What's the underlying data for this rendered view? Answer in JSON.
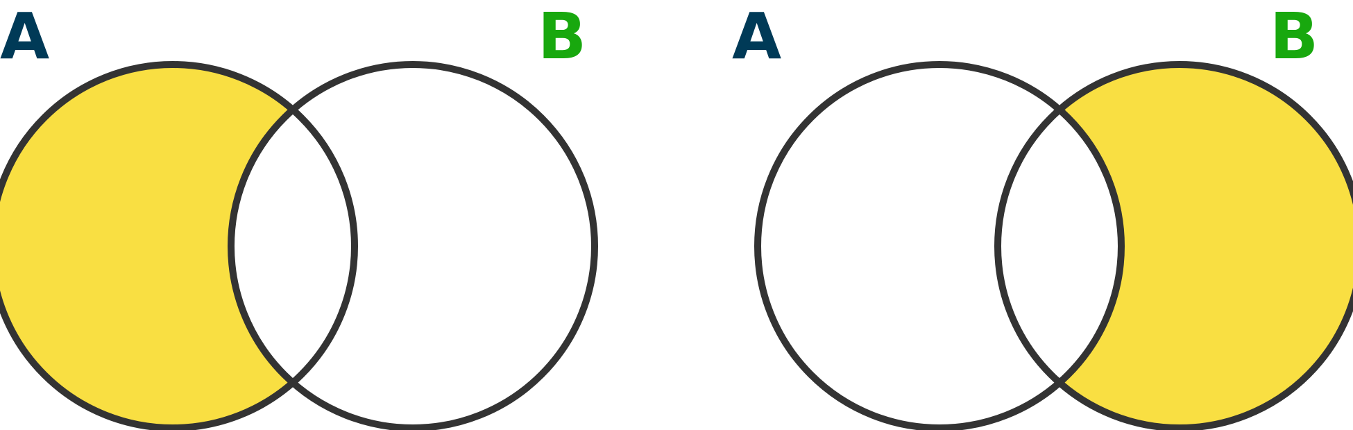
{
  "diagrams": [
    {
      "labels": {
        "left": "A",
        "right": "B"
      },
      "shaded_region": "A only"
    },
    {
      "labels": {
        "left": "A",
        "right": "B"
      },
      "shaded_region": "B only"
    }
  ],
  "colors": {
    "fill": "#f9df42",
    "stroke": "#333333",
    "label_a": "#003a57",
    "label_b": "#18a80e",
    "background": "#ffffff"
  }
}
